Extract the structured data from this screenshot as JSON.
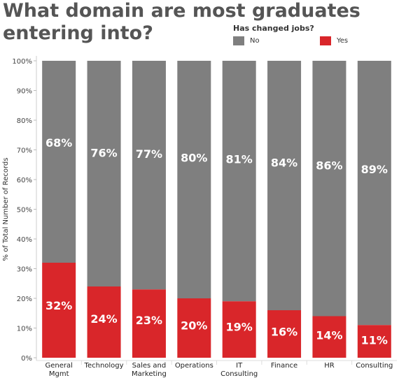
{
  "chart_data": {
    "type": "bar",
    "stacked": true,
    "title": "What domain are most graduates entering into?",
    "ylabel": "% of Total Number of Records",
    "xlabel": "",
    "ylim": [
      0,
      100
    ],
    "y_ticks": [
      "0%",
      "10%",
      "20%",
      "30%",
      "40%",
      "50%",
      "60%",
      "70%",
      "80%",
      "90%",
      "100%"
    ],
    "categories": [
      [
        "General",
        "Mgmt"
      ],
      [
        "Technology"
      ],
      [
        "Sales and",
        "Marketing"
      ],
      [
        "Operations"
      ],
      [
        "IT",
        "Consulting"
      ],
      [
        "Finance"
      ],
      [
        "HR"
      ],
      [
        "Consulting"
      ]
    ],
    "legend_title": "Has changed jobs?",
    "legend_position": "top-right",
    "series": [
      {
        "name": "Yes",
        "color": "#d9262a",
        "values": [
          32,
          24,
          23,
          20,
          19,
          16,
          14,
          11
        ],
        "labels": [
          "32%",
          "24%",
          "23%",
          "20%",
          "19%",
          "16%",
          "14%",
          "11%"
        ]
      },
      {
        "name": "No",
        "color": "#7f7f7f",
        "values": [
          68,
          76,
          77,
          80,
          81,
          84,
          86,
          89
        ],
        "labels": [
          "68%",
          "76%",
          "77%",
          "80%",
          "81%",
          "84%",
          "86%",
          "89%"
        ]
      }
    ]
  }
}
